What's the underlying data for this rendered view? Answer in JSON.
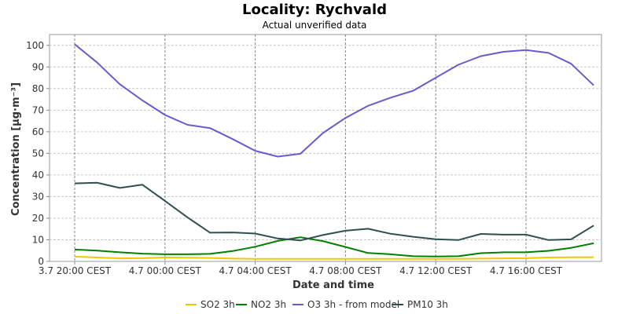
{
  "chart_data": {
    "type": "line",
    "title": "Locality: Rychvald",
    "subtitle": "Actual unverified data",
    "xlabel": "Date and time",
    "ylabel": "Concentration [µg·m⁻³]",
    "ylim": [
      0,
      105
    ],
    "yticks": [
      0,
      10,
      20,
      30,
      40,
      50,
      60,
      70,
      80,
      90,
      100
    ],
    "xlim": [
      0,
      23.6
    ],
    "xticks": [
      {
        "x": 0,
        "label": "3.7 20:00 CEST"
      },
      {
        "x": 4,
        "label": "4.7 00:00 CEST"
      },
      {
        "x": 8,
        "label": "4.7 04:00 CEST"
      },
      {
        "x": 12,
        "label": "4.7 08:00 CEST"
      },
      {
        "x": 16,
        "label": "4.7 12:00 CEST"
      },
      {
        "x": 20,
        "label": "4.7 16:00 CEST"
      }
    ],
    "grid": true,
    "legend_position": "bottom",
    "x": [
      0,
      1,
      2,
      3,
      4,
      5,
      6,
      7,
      8,
      9,
      10,
      11,
      12,
      13,
      14,
      15,
      16,
      17,
      18,
      19,
      20,
      21,
      22,
      23
    ],
    "series": [
      {
        "name": "SO2 3h",
        "color": "#f0c800",
        "values": [
          2.2,
          1.8,
          1.4,
          1.5,
          1.8,
          1.7,
          1.6,
          1.3,
          1.2,
          1.2,
          1.2,
          1.2,
          1.2,
          1.2,
          1.2,
          1.2,
          1.2,
          1.2,
          1.3,
          1.4,
          1.5,
          1.8,
          1.9,
          1.9
        ]
      },
      {
        "name": "NO2 3h",
        "color": "#008000",
        "values": [
          5.5,
          5.0,
          4.2,
          3.6,
          3.3,
          3.3,
          3.5,
          4.8,
          6.8,
          9.5,
          11.2,
          9.4,
          6.7,
          3.9,
          3.3,
          2.4,
          2.3,
          2.4,
          3.8,
          4.2,
          4.2,
          4.9,
          6.3,
          8.4
        ]
      },
      {
        "name": "O3 3h - from model",
        "color": "#6a5acd",
        "values": [
          100.5,
          92.0,
          82.0,
          74.5,
          67.8,
          63.2,
          61.7,
          56.6,
          51.2,
          48.5,
          49.8,
          59.4,
          66.4,
          72.0,
          75.8,
          79.0,
          85.0,
          91.0,
          95.0,
          97.0,
          97.8,
          96.5,
          91.5,
          81.5
        ]
      },
      {
        "name": "PM10 3h",
        "color": "#2f4f4f",
        "values": [
          36.1,
          36.4,
          34.0,
          35.5,
          28.0,
          20.4,
          13.3,
          13.4,
          12.9,
          10.6,
          9.7,
          12.2,
          14.2,
          15.1,
          12.8,
          11.4,
          10.3,
          9.9,
          12.7,
          12.4,
          12.4,
          9.9,
          10.2,
          16.6
        ]
      }
    ]
  }
}
